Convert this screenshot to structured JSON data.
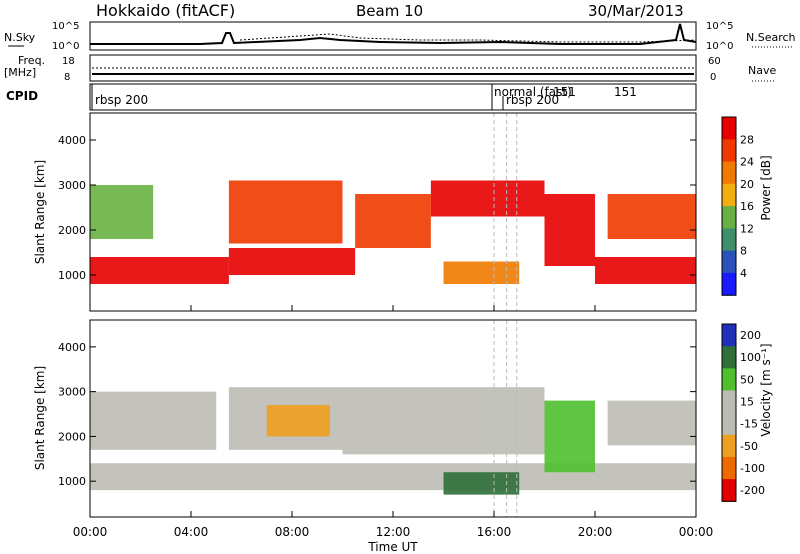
{
  "header": {
    "title": "Hokkaido (fitACF)",
    "beam": "Beam 10",
    "date": "30/Mar/2013"
  },
  "summary_panels": {
    "nsky_label": "N.Sky",
    "nsky_ticks": [
      "10^5",
      "10^0"
    ],
    "nsearch_label": "N.Search",
    "nsearch_ticks": [
      "10^5",
      "10^0"
    ],
    "freq_label": "Freq.",
    "freq_unit": "[MHz]",
    "freq_ticks": [
      "18",
      "8"
    ],
    "nave_label": "Nave",
    "nave_ticks": [
      "60",
      "0"
    ],
    "cpid_label": "CPID",
    "cpid_entries": [
      "rbsp 200",
      "normal (fast)",
      "rbsp 200",
      "151",
      "151"
    ]
  },
  "colors": {
    "power_scale": [
      "#1a1aff",
      "#2a52b8",
      "#3f8f6a",
      "#69b043",
      "#f2b010",
      "#f07a00",
      "#ee3a00",
      "#e80000"
    ],
    "velocity_scale": [
      "#2030b8",
      "#2f6f3a",
      "#4fbf2f",
      "#bcbcb4",
      "#bcbcb4",
      "#f0a020",
      "#ee6a00",
      "#e00000"
    ]
  },
  "chart_data": [
    {
      "type": "heatmap",
      "name": "power",
      "ylabel": "Slant Range [km]",
      "xlabel": "Time UT",
      "y_ticks": [
        1000,
        2000,
        3000,
        4000
      ],
      "ylim": [
        200,
        4600
      ],
      "x_ticks": [
        "00:00",
        "04:00",
        "08:00",
        "12:00",
        "16:00",
        "20:00",
        "00:00"
      ],
      "xlim_hours": [
        0,
        24
      ],
      "colorbar_label": "Power [dB]",
      "colorbar_ticks": [
        "4",
        "8",
        "12",
        "16",
        "20",
        "24",
        "28"
      ],
      "bands": [
        {
          "x0": 0.0,
          "x1": 5.5,
          "y0": 800,
          "y1": 1400,
          "level": 28
        },
        {
          "x0": 5.5,
          "x1": 10.5,
          "y0": 1000,
          "y1": 1600,
          "level": 28
        },
        {
          "x0": 10.5,
          "x1": 13.5,
          "y0": 1600,
          "y1": 2800,
          "level": 26
        },
        {
          "x0": 5.5,
          "x1": 10.0,
          "y0": 1700,
          "y1": 3100,
          "level": 24
        },
        {
          "x0": 13.5,
          "x1": 18.0,
          "y0": 2300,
          "y1": 3100,
          "level": 28
        },
        {
          "x0": 18.0,
          "x1": 20.0,
          "y0": 1200,
          "y1": 2800,
          "level": 28
        },
        {
          "x0": 20.0,
          "x1": 24.0,
          "y0": 800,
          "y1": 1400,
          "level": 28
        },
        {
          "x0": 0.0,
          "x1": 2.5,
          "y0": 1800,
          "y1": 3000,
          "level": 14
        },
        {
          "x0": 14.0,
          "x1": 17.0,
          "y0": 800,
          "y1": 1300,
          "level": 22
        },
        {
          "x0": 20.5,
          "x1": 24.0,
          "y0": 1800,
          "y1": 2800,
          "level": 24
        }
      ]
    },
    {
      "type": "heatmap",
      "name": "velocity",
      "ylabel": "Slant Range [km]",
      "xlabel": "Time UT",
      "y_ticks": [
        1000,
        2000,
        3000,
        4000
      ],
      "ylim": [
        200,
        4600
      ],
      "x_ticks": [
        "00:00",
        "04:00",
        "08:00",
        "12:00",
        "16:00",
        "20:00",
        "00:00"
      ],
      "xlim_hours": [
        0,
        24
      ],
      "colorbar_label": "Velocity [m s⁻¹]",
      "colorbar_ticks": [
        "200",
        "100",
        "50",
        "15",
        "-15",
        "-50",
        "-100",
        "-200"
      ],
      "bands": [
        {
          "x0": 0.0,
          "x1": 24.0,
          "y0": 800,
          "y1": 1400,
          "vel": 0
        },
        {
          "x0": 0.0,
          "x1": 5.0,
          "y0": 1700,
          "y1": 3000,
          "vel": 0
        },
        {
          "x0": 5.5,
          "x1": 10.0,
          "y0": 1700,
          "y1": 3100,
          "vel": 0
        },
        {
          "x0": 10.0,
          "x1": 18.0,
          "y0": 1600,
          "y1": 3100,
          "vel": 0
        },
        {
          "x0": 7.0,
          "x1": 9.5,
          "y0": 2000,
          "y1": 2700,
          "vel": -40
        },
        {
          "x0": 14.0,
          "x1": 17.0,
          "y0": 700,
          "y1": 1200,
          "vel": 60
        },
        {
          "x0": 18.0,
          "x1": 20.0,
          "y0": 1200,
          "y1": 2800,
          "vel": 40
        },
        {
          "x0": 20.5,
          "x1": 24.0,
          "y0": 1800,
          "y1": 2800,
          "vel": 0
        }
      ]
    }
  ]
}
